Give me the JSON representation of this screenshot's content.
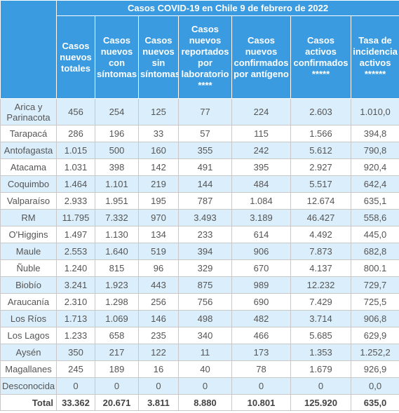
{
  "table": {
    "title": "Casos COVID-19 en Chile 9 de febrero de 2022",
    "headers": [
      "Casos nuevos totales",
      "Casos nuevos con síntomas",
      "Casos nuevos sin síntomas",
      "Casos nuevos reportados por laboratorio ****",
      "Casos nuevos confirmados por antígeno",
      "Casos activos confirmados *****",
      "Tasa de incidencia activos ******"
    ],
    "rows": [
      [
        "Arica y Parinacota",
        "456",
        "254",
        "125",
        "77",
        "224",
        "2.603",
        "1.010,0"
      ],
      [
        "Tarapacá",
        "286",
        "196",
        "33",
        "57",
        "115",
        "1.566",
        "394,8"
      ],
      [
        "Antofagasta",
        "1.015",
        "500",
        "160",
        "355",
        "242",
        "5.612",
        "790,8"
      ],
      [
        "Atacama",
        "1.031",
        "398",
        "142",
        "491",
        "395",
        "2.927",
        "920,4"
      ],
      [
        "Coquimbo",
        "1.464",
        "1.101",
        "219",
        "144",
        "484",
        "5.517",
        "642,4"
      ],
      [
        "Valparaíso",
        "2.933",
        "1.951",
        "195",
        "787",
        "1.084",
        "12.674",
        "635,1"
      ],
      [
        "RM",
        "11.795",
        "7.332",
        "970",
        "3.493",
        "3.189",
        "46.427",
        "558,6"
      ],
      [
        "O'Higgins",
        "1.497",
        "1.130",
        "134",
        "233",
        "614",
        "4.492",
        "445,0"
      ],
      [
        "Maule",
        "2.553",
        "1.640",
        "519",
        "394",
        "906",
        "7.873",
        "682,8"
      ],
      [
        "Ñuble",
        "1.240",
        "815",
        "96",
        "329",
        "670",
        "4.137",
        "800.1"
      ],
      [
        "Biobío",
        "3.241",
        "1.923",
        "443",
        "875",
        "989",
        "12.232",
        "729,7"
      ],
      [
        "Araucanía",
        "2.310",
        "1.298",
        "256",
        "756",
        "690",
        "7.429",
        "725,5"
      ],
      [
        "Los Ríos",
        "1.713",
        "1.069",
        "146",
        "498",
        "482",
        "3.714",
        "906,8"
      ],
      [
        "Los Lagos",
        "1.233",
        "658",
        "235",
        "340",
        "466",
        "5.685",
        "629,9"
      ],
      [
        "Aysén",
        "350",
        "217",
        "122",
        "11",
        "173",
        "1.353",
        "1.252,2"
      ],
      [
        "Magallanes",
        "245",
        "189",
        "16",
        "40",
        "78",
        "1.679",
        "926,9"
      ],
      [
        "Desconocida",
        "0",
        "0",
        "0",
        "0",
        "0",
        "0",
        "0,0"
      ]
    ],
    "total": [
      "Total",
      "33.362",
      "20.671",
      "3.811",
      "8.880",
      "10.801",
      "125.920",
      "635,0"
    ]
  }
}
